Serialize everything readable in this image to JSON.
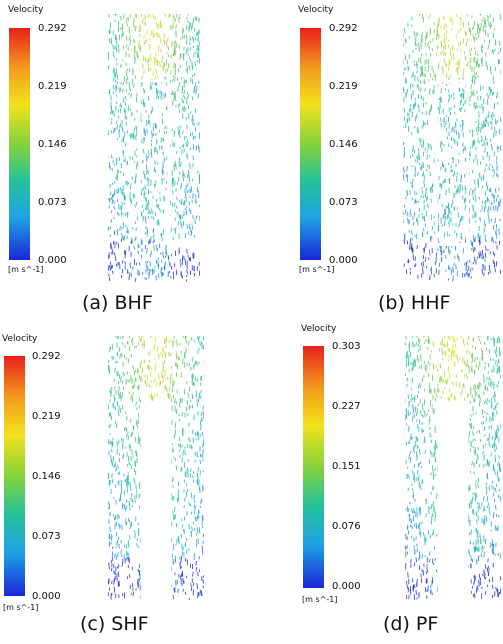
{
  "panels": [
    {
      "id": "a",
      "legend_title": "Velocity",
      "ticks": [
        "0.292",
        "0.219",
        "0.146",
        "0.073",
        "0.000"
      ],
      "unit": "[m s^-1]",
      "caption": "(a)  BHF",
      "heater": "baffle"
    },
    {
      "id": "b",
      "legend_title": "Velocity",
      "ticks": [
        "0.292",
        "0.219",
        "0.146",
        "0.073",
        "0.000"
      ],
      "unit": "[m s^-1]",
      "caption": "(b)  HHF",
      "heater": "hairpin"
    },
    {
      "id": "c",
      "legend_title": "Velocity",
      "ticks": [
        "0.292",
        "0.219",
        "0.146",
        "0.073",
        "0.000"
      ],
      "unit": "[m s^-1]",
      "caption": "(c)  SHF",
      "heater": "solid"
    },
    {
      "id": "d",
      "legend_title": "Velocity",
      "ticks": [
        "0.303",
        "0.227",
        "0.151",
        "0.076",
        "0.000"
      ],
      "unit": "[m s^-1]",
      "caption": "(d)  PF",
      "heater": "solid"
    }
  ],
  "colors": {
    "high": "#e8201c",
    "mid": "#86d23a",
    "low": "#1a26d6",
    "field_green": "#5cc850",
    "field_cyan": "#28c4b8",
    "field_blue": "#2a7ee0"
  }
}
